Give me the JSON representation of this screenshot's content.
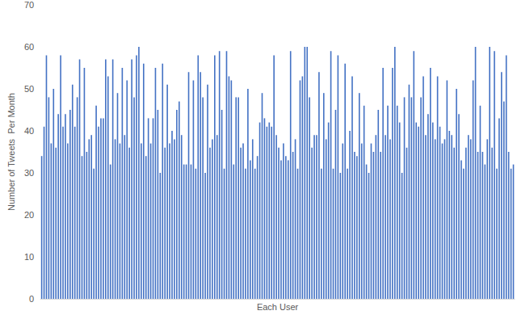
{
  "chart_data": {
    "type": "bar",
    "x_label": "Each User",
    "y_label": "Number of Tweets  Per Month",
    "categories": [
      null,
      null,
      null,
      null,
      null,
      null,
      null,
      null,
      null,
      null,
      null,
      null,
      null,
      null,
      null,
      null,
      null,
      null,
      null,
      null,
      null,
      null,
      null,
      null,
      null,
      null,
      null,
      null,
      null,
      null,
      null,
      null,
      null,
      null,
      null,
      null,
      null,
      null,
      null,
      null,
      null,
      null,
      null,
      null,
      null,
      null,
      null,
      null,
      null,
      null,
      null,
      null,
      null,
      null,
      null,
      null,
      null,
      null,
      null,
      null,
      null,
      null,
      null,
      null,
      null,
      null,
      null,
      null,
      null,
      null,
      null,
      null,
      null,
      null,
      null,
      null,
      null,
      null,
      null,
      null,
      null,
      null,
      null,
      null,
      null,
      null,
      null,
      null,
      null,
      null,
      null,
      null,
      null,
      null,
      null,
      null,
      null,
      null,
      null,
      null,
      null,
      null,
      null,
      null,
      null,
      null,
      null,
      null,
      null,
      null,
      null,
      null,
      null,
      null,
      null,
      null,
      null,
      null,
      null,
      null,
      null,
      null,
      null,
      null,
      null,
      null,
      null,
      null,
      null,
      null,
      null,
      null,
      null,
      null,
      null,
      null,
      null,
      null,
      null,
      null,
      null,
      null,
      null,
      null,
      null,
      null,
      null,
      null,
      null,
      null,
      null,
      null,
      null,
      null,
      null,
      null,
      null,
      null,
      null,
      null,
      null,
      null,
      null,
      null,
      null,
      null,
      null,
      null,
      null,
      null,
      null,
      null,
      null,
      null,
      null,
      null,
      null,
      null,
      null,
      null,
      null,
      null,
      null,
      null,
      null,
      null,
      null,
      null,
      null,
      null,
      null,
      null,
      null,
      null,
      null,
      null,
      null,
      null,
      null,
      null
    ],
    "values": [
      34,
      41,
      58,
      48,
      37,
      50,
      36,
      44,
      58,
      41,
      44,
      37,
      45,
      51,
      41,
      48,
      57,
      34,
      55,
      35,
      38,
      39,
      31,
      46,
      41,
      43,
      43,
      57,
      53,
      32,
      57,
      38,
      49,
      37,
      55,
      39,
      52,
      36,
      57,
      48,
      58,
      60,
      37,
      56,
      34,
      43,
      37,
      43,
      55,
      45,
      30,
      56,
      36,
      51,
      37,
      40,
      38,
      45,
      47,
      39,
      32,
      32,
      54,
      32,
      52,
      31,
      58,
      54,
      48,
      30,
      51,
      36,
      38,
      58,
      39,
      59,
      45,
      31,
      59,
      53,
      52,
      32,
      48,
      48,
      36,
      37,
      31,
      50,
      33,
      38,
      31,
      34,
      42,
      49,
      43,
      41,
      42,
      41,
      58,
      39,
      36,
      33,
      37,
      34,
      33,
      59,
      35,
      38,
      31,
      52,
      53,
      60,
      60,
      48,
      36,
      39,
      39,
      54,
      31,
      49,
      38,
      42,
      59,
      31,
      45,
      58,
      30,
      37,
      56,
      31,
      40,
      53,
      35,
      34,
      49,
      37,
      46,
      32,
      30,
      37,
      35,
      39,
      45,
      35,
      55,
      39,
      46,
      38,
      55,
      60,
      46,
      42,
      30,
      48,
      36,
      51,
      48,
      59,
      42,
      41,
      48,
      53,
      39,
      44,
      55,
      42,
      38,
      53,
      41,
      37,
      38,
      52,
      40,
      39,
      36,
      50,
      44,
      33,
      31,
      36,
      39,
      38,
      52,
      60,
      35,
      46,
      35,
      32,
      38,
      60,
      36,
      59,
      31,
      43,
      54,
      47,
      58,
      35,
      31,
      32
    ],
    "color": "#4472c4",
    "ylim": [
      0,
      70
    ],
    "yticks": [
      0,
      10,
      20,
      30,
      40,
      50,
      60,
      70
    ],
    "grid": false,
    "tick_labels": "y"
  }
}
